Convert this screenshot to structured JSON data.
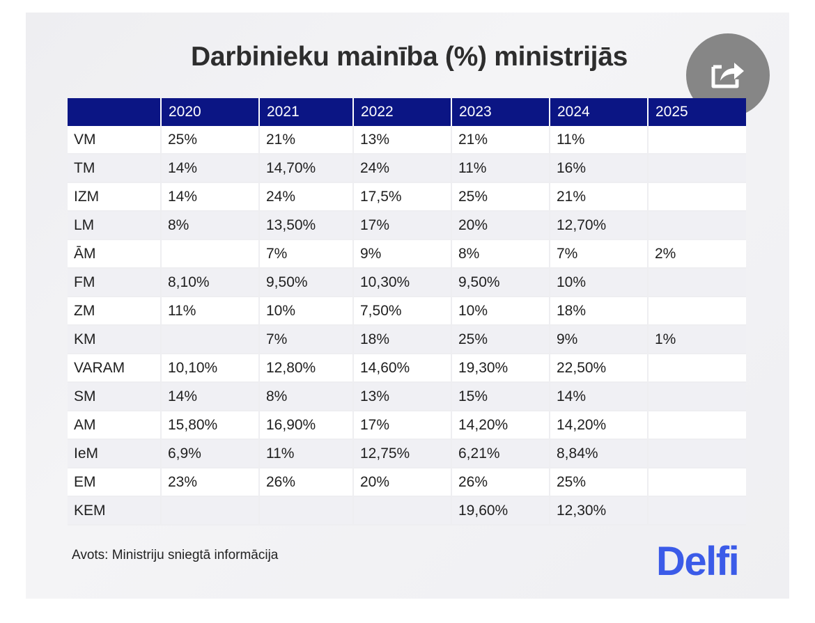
{
  "title": "Darbinieku mainība (%) ministrijās",
  "source": "Avots: Ministriju sniegtā informācija",
  "logo": "Delfi",
  "colors": {
    "header_bg": "#0b1584",
    "logo": "#3b5be8",
    "share_button": "#6e6e6e"
  },
  "share_icon": "share-arrow-icon",
  "chart_data": {
    "type": "table",
    "title": "Darbinieku mainība (%) ministrijās",
    "columns": [
      "",
      "2020",
      "2021",
      "2022",
      "2023",
      "2024",
      "2025"
    ],
    "rows": [
      [
        "VM",
        "25%",
        "21%",
        "13%",
        "21%",
        "11%",
        ""
      ],
      [
        "TM",
        "14%",
        "14,70%",
        "24%",
        "11%",
        "16%",
        ""
      ],
      [
        "IZM",
        "14%",
        "24%",
        "17,5%",
        "25%",
        "21%",
        ""
      ],
      [
        "LM",
        "8%",
        "13,50%",
        "17%",
        "20%",
        "12,70%",
        ""
      ],
      [
        "ĀM",
        "",
        "7%",
        "9%",
        "8%",
        "7%",
        "2%"
      ],
      [
        "FM",
        "8,10%",
        "9,50%",
        "10,30%",
        "9,50%",
        "10%",
        ""
      ],
      [
        "ZM",
        "11%",
        "10%",
        "7,50%",
        "10%",
        "18%",
        ""
      ],
      [
        "KM",
        "",
        "7%",
        "18%",
        "25%",
        "9%",
        "1%"
      ],
      [
        "VARAM",
        "10,10%",
        "12,80%",
        "14,60%",
        "19,30%",
        "22,50%",
        ""
      ],
      [
        "SM",
        "14%",
        "8%",
        "13%",
        "15%",
        "14%",
        ""
      ],
      [
        "AM",
        "15,80%",
        "16,90%",
        "17%",
        "14,20%",
        "14,20%",
        ""
      ],
      [
        "IeM",
        "6,9%",
        "11%",
        "12,75%",
        "6,21%",
        "8,84%",
        ""
      ],
      [
        "EM",
        "23%",
        "26%",
        "20%",
        "26%",
        "25%",
        ""
      ],
      [
        "KEM",
        "",
        "",
        "",
        "19,60%",
        "12,30%",
        ""
      ]
    ]
  }
}
